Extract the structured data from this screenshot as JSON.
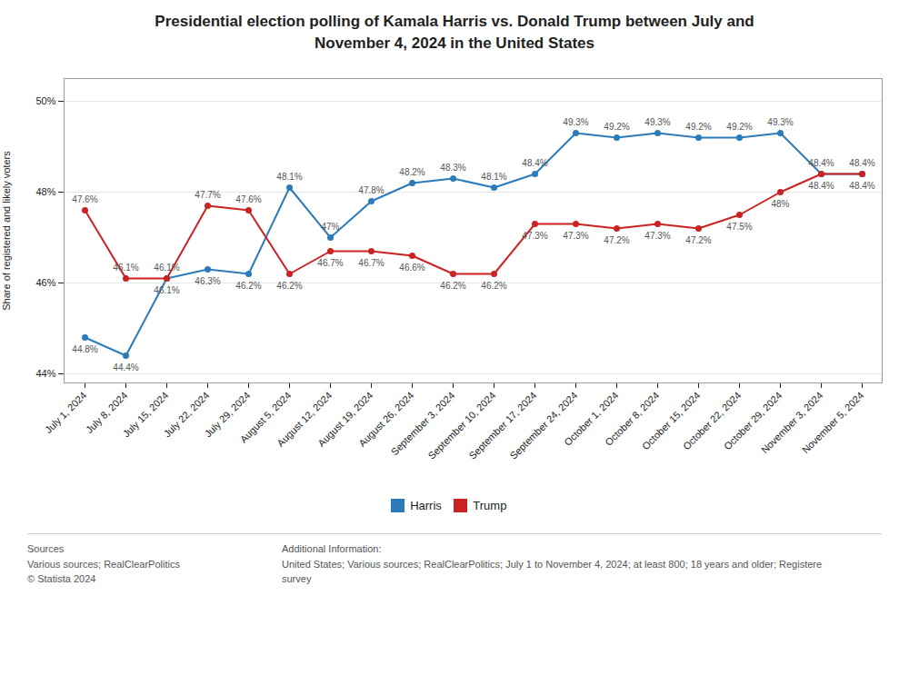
{
  "chart_data": {
    "type": "line",
    "title": "Presidential election polling of Kamala Harris vs. Donald Trump between July and\nNovember 4, 2024 in the United States",
    "ylabel": "Share of registered and likely voters",
    "categories": [
      "July 1, 2024",
      "July 8, 2024",
      "July 15, 2024",
      "July 22, 2024",
      "July 29, 2024",
      "August 5, 2024",
      "August 12, 2024",
      "August 19, 2024",
      "August 26, 2024",
      "September 3, 2024",
      "September 10, 2024",
      "September 17, 2024",
      "September 24, 2024",
      "October 1, 2024",
      "October 8, 2024",
      "October 15, 2024",
      "October 22, 2024",
      "October 29, 2024",
      "November 3, 2024",
      "November 5, 2024"
    ],
    "series": [
      {
        "name": "Harris",
        "color": "#2b7bba",
        "values": [
          44.8,
          44.4,
          46.1,
          46.3,
          46.2,
          48.1,
          47.0,
          47.8,
          48.2,
          48.3,
          48.1,
          48.4,
          49.3,
          49.2,
          49.3,
          49.2,
          49.2,
          49.3,
          48.4,
          48.4
        ],
        "value_labels": [
          "44.8%",
          "44.4%",
          "46.1%",
          "46.3%",
          "46.2%",
          "48.1%",
          "47%",
          "47.8%",
          "48.2%",
          "48.3%",
          "48.1%",
          "48.4%",
          "49.3%",
          "49.2%",
          "49.3%",
          "49.2%",
          "49.2%",
          "49.3%",
          "48.4%",
          "48.4%"
        ]
      },
      {
        "name": "Trump",
        "color": "#cc2222",
        "values": [
          47.6,
          46.1,
          46.1,
          47.7,
          47.6,
          46.2,
          46.7,
          46.7,
          46.6,
          46.2,
          46.2,
          47.3,
          47.3,
          47.2,
          47.3,
          47.2,
          47.5,
          48.0,
          48.4,
          48.4
        ],
        "value_labels": [
          "47.6%",
          "46.1%",
          "46.1%",
          "47.7%",
          "47.6%",
          "46.2%",
          "46.7%",
          "46.7%",
          "46.6%",
          "46.2%",
          "46.2%",
          "47.3%",
          "47.3%",
          "47.2%",
          "47.3%",
          "47.2%",
          "47.5%",
          "48%",
          "48.4%",
          "48.4%"
        ]
      }
    ],
    "ylim": [
      43.8,
      50.5
    ],
    "yticks": [
      {
        "value": 44,
        "label": "44%"
      },
      {
        "value": 46,
        "label": "46%"
      },
      {
        "value": 48,
        "label": "48%"
      },
      {
        "value": 50,
        "label": "50%"
      }
    ],
    "grid": true,
    "legend": "bottom",
    "marker": "circle",
    "data_labels": true,
    "annotations": [
      "Sources\nVarious sources; RealClearPolitics\n© Statista 2024",
      "Additional Information:\nUnited States; Various sources; RealClearPolitics; July 1 to November 4, 2024; at least 800; 18 years and older; Registere\nsurvey"
    ]
  }
}
